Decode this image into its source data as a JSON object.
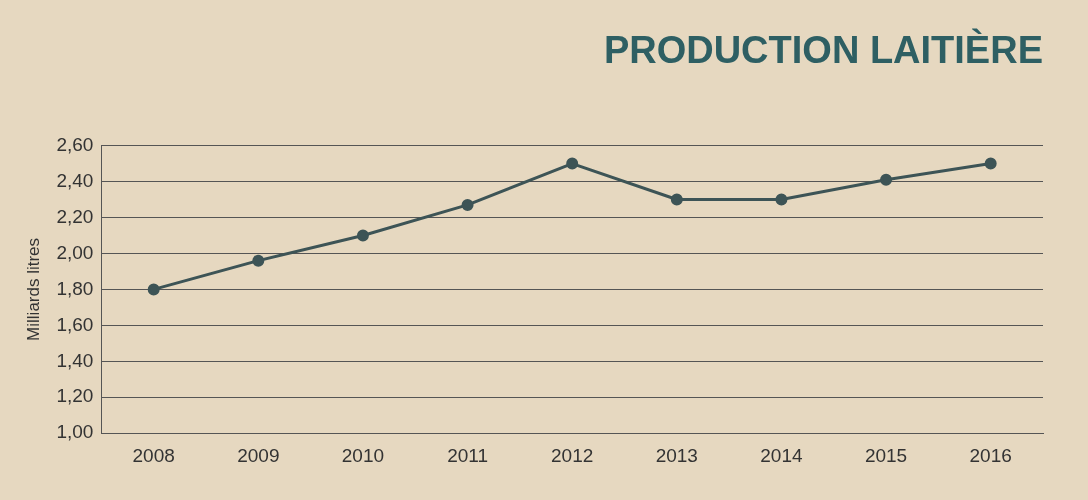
{
  "chart_data": {
    "type": "line",
    "title": "PRODUCTION LAITIÈRE",
    "ylabel": "Milliards litres",
    "categories": [
      "2008",
      "2009",
      "2010",
      "2011",
      "2012",
      "2013",
      "2014",
      "2015",
      "2016"
    ],
    "series": [
      {
        "color": "#3d5456",
        "values": [
          1.8,
          1.96,
          2.1,
          2.27,
          2.5,
          2.3,
          2.3,
          2.41,
          2.5
        ]
      }
    ],
    "ylim": [
      1.0,
      2.6
    ],
    "yticks": [
      {
        "value": 1.0,
        "label": "1,00"
      },
      {
        "value": 1.2,
        "label": "1,20"
      },
      {
        "value": 1.4,
        "label": "1,40"
      },
      {
        "value": 1.6,
        "label": "1,60"
      },
      {
        "value": 1.8,
        "label": "1,80"
      },
      {
        "value": 2.0,
        "label": "2,00"
      },
      {
        "value": 2.2,
        "label": "2,20"
      },
      {
        "value": 2.4,
        "label": "2,40"
      },
      {
        "value": 2.6,
        "label": "2,60"
      }
    ],
    "grid": "y",
    "legend": false,
    "marker": "circle",
    "line_style": "solid"
  }
}
